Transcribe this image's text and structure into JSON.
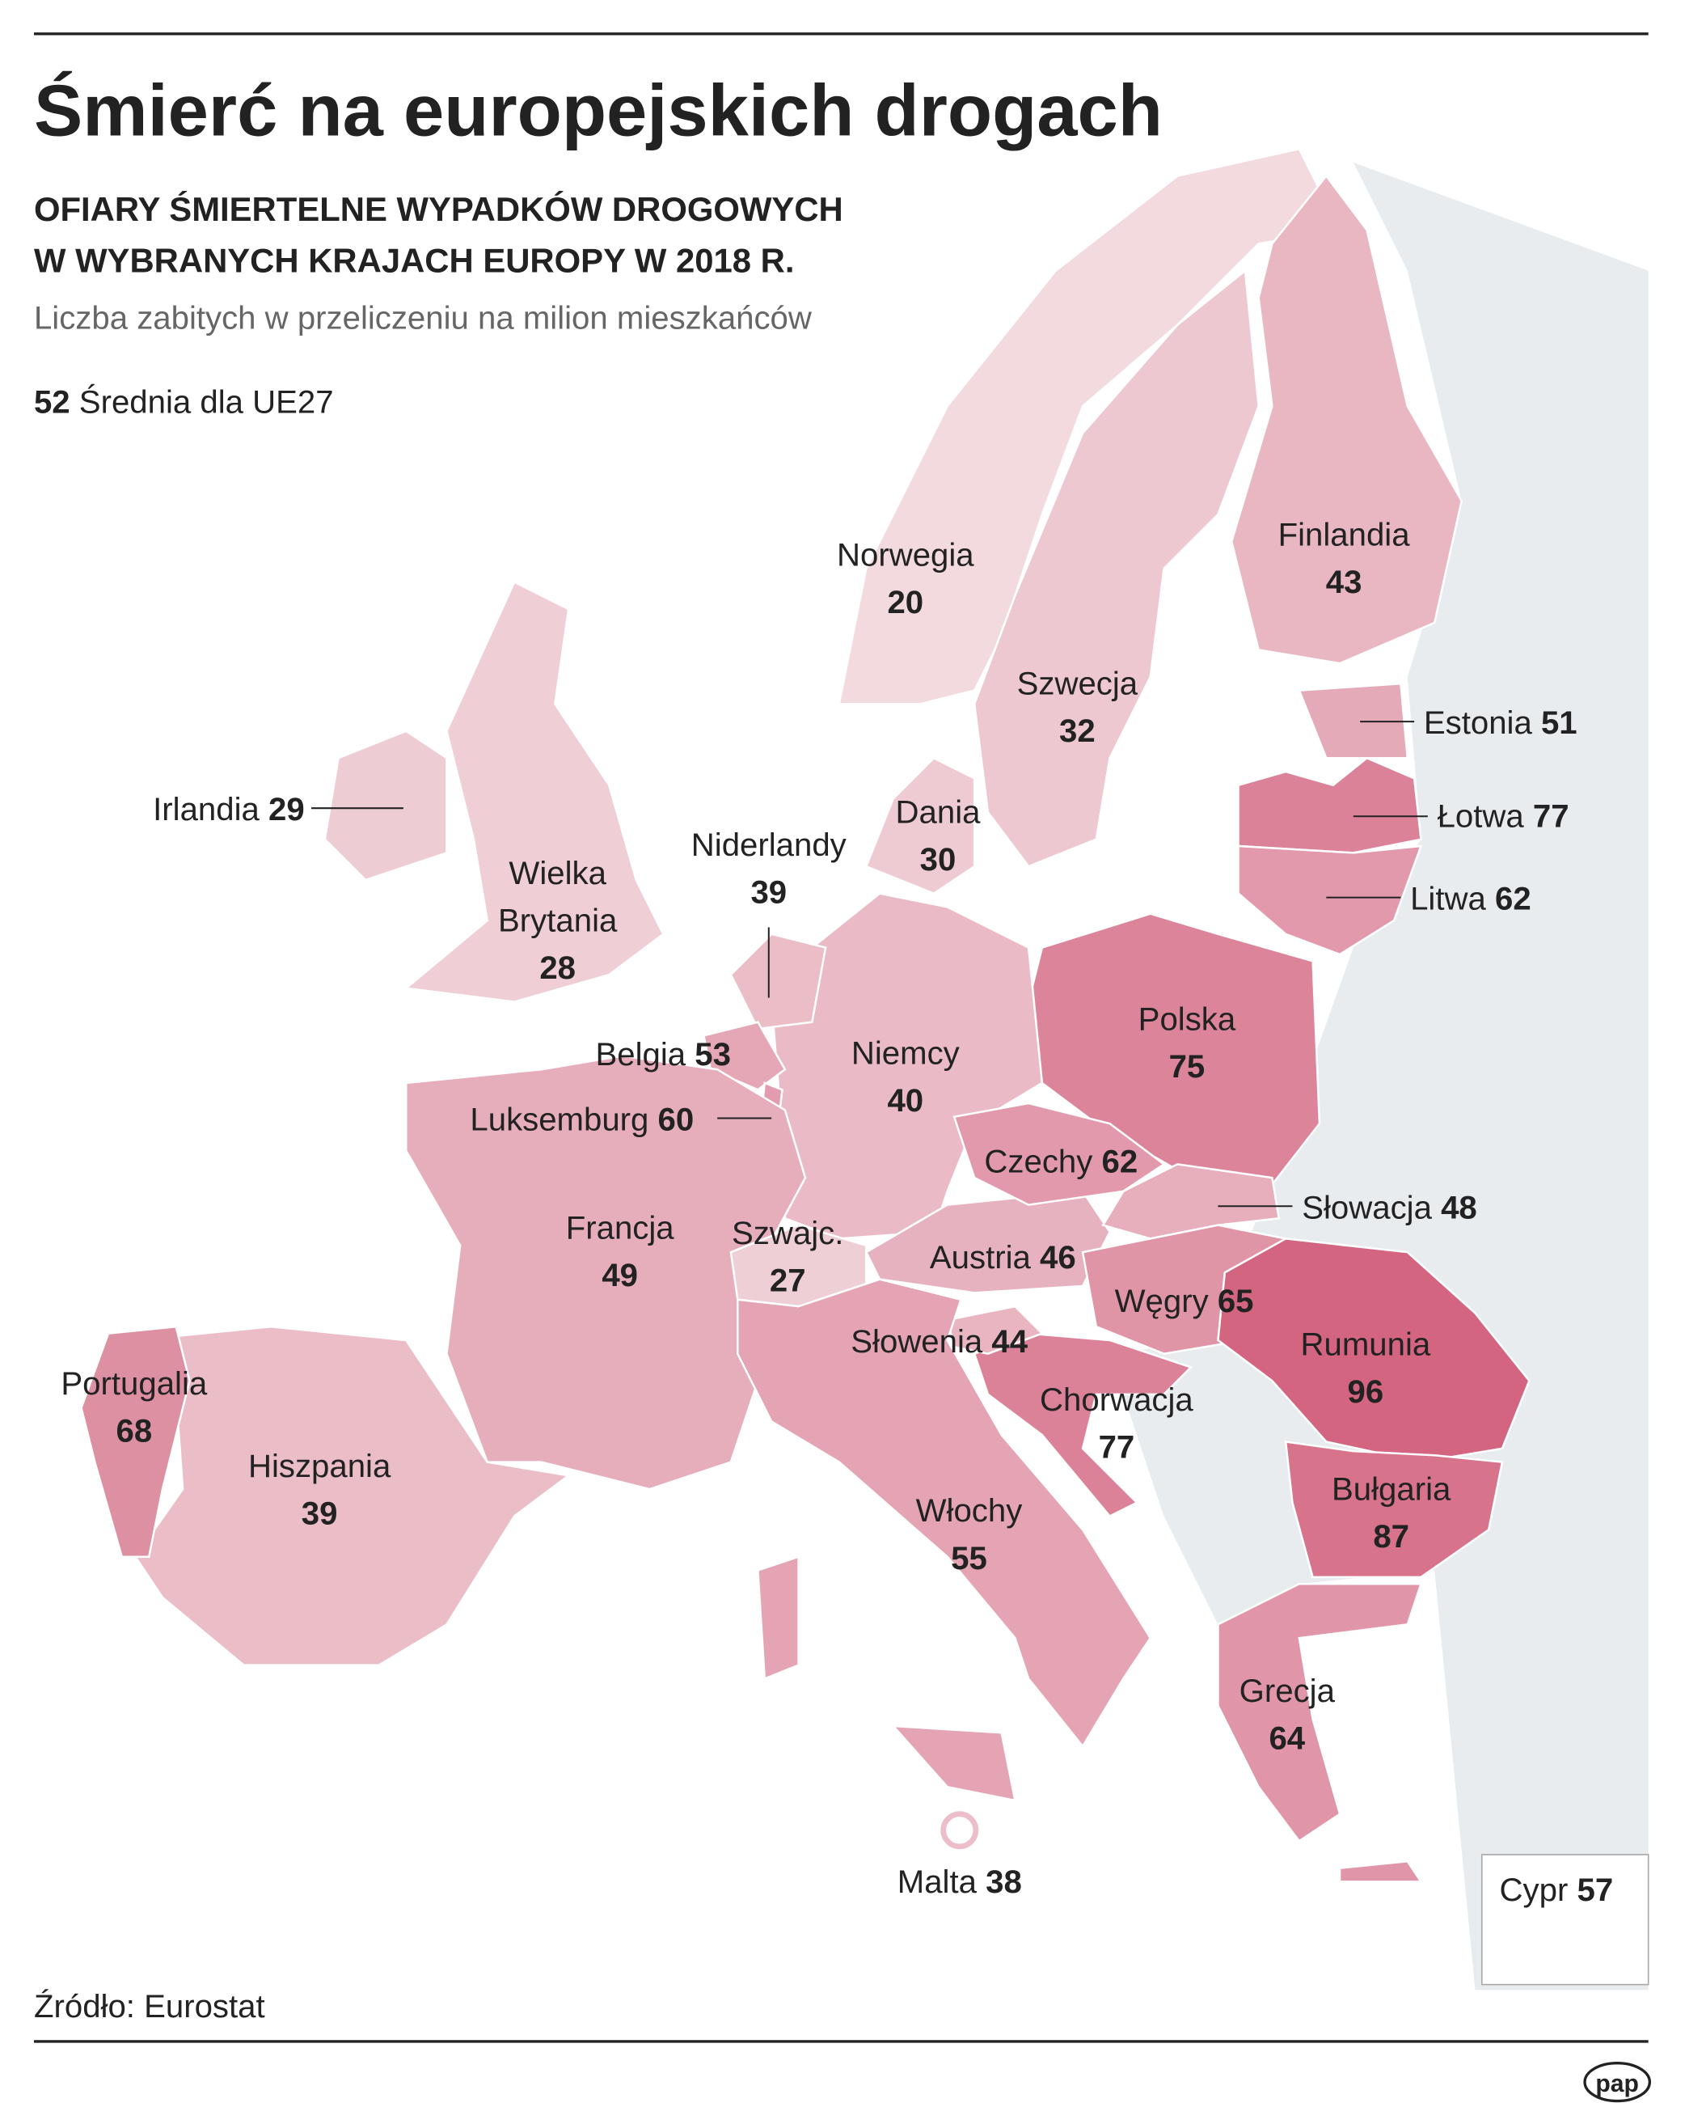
{
  "header": {
    "title": "Śmierć na europejskich drogach",
    "subtitle_lines": [
      "OFIARY ŚMIERTELNE WYPADKÓW DROGOWYCH",
      "W WYBRANYCH KRAJACH EUROPY W 2018 R."
    ],
    "description": "Liczba zabitych w przeliczeniu na milion mieszkańców"
  },
  "average": {
    "value": 52,
    "label": "Średnia dla UE27"
  },
  "countries": [
    {
      "name": "Norwegia",
      "value": 20
    },
    {
      "name": "Szwecja",
      "value": 32
    },
    {
      "name": "Finlandia",
      "value": 43
    },
    {
      "name": "Estonia",
      "value": 51
    },
    {
      "name": "Łotwa",
      "value": 77
    },
    {
      "name": "Litwa",
      "value": 62
    },
    {
      "name": "Polska",
      "value": 75
    },
    {
      "name": "Niemcy",
      "value": 40
    },
    {
      "name": "Dania",
      "value": 30
    },
    {
      "name": "Niderlandy",
      "value": 39
    },
    {
      "name": "Belgia",
      "value": 53
    },
    {
      "name": "Luksemburg",
      "value": 60
    },
    {
      "name": "Francja",
      "value": 49
    },
    {
      "name": "Szwajc.",
      "value": 27
    },
    {
      "name": "Austria",
      "value": 46
    },
    {
      "name": "Czechy",
      "value": 62
    },
    {
      "name": "Słowacja",
      "value": 48
    },
    {
      "name": "Węgry",
      "value": 65
    },
    {
      "name": "Rumunia",
      "value": 96
    },
    {
      "name": "Bułgaria",
      "value": 87
    },
    {
      "name": "Chorwacja",
      "value": 77
    },
    {
      "name": "Słowenia",
      "value": 44
    },
    {
      "name": "Włochy",
      "value": 55
    },
    {
      "name": "Grecja",
      "value": 64
    },
    {
      "name": "Hiszpania",
      "value": 39
    },
    {
      "name": "Portugalia",
      "value": 68
    },
    {
      "name": "Irlandia",
      "value": 29
    },
    {
      "name": "Wielka Brytania",
      "value": 28
    },
    {
      "name": "Malta",
      "value": 38
    },
    {
      "name": "Cypr",
      "value": 57
    }
  ],
  "source": "Źródło: Eurostat",
  "logo": "pap"
}
